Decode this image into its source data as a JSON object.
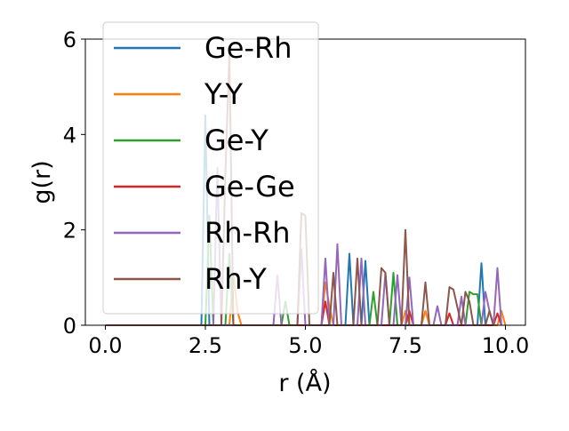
{
  "chart_data": {
    "type": "line",
    "xlabel": "r (Å)",
    "ylabel": "g(r)",
    "xlim": [
      -0.5,
      10.5
    ],
    "ylim": [
      0,
      6
    ],
    "xticks": [
      "0.0",
      "2.5",
      "5.0",
      "7.5",
      "10.0"
    ],
    "yticks": [
      "0",
      "2",
      "4",
      "6"
    ],
    "grid": false,
    "legend_position": "top-left",
    "series": [
      {
        "name": "Ge-Rh",
        "color": "#1f77b4",
        "x": [
          0,
          2.4,
          2.5,
          2.6,
          2.7,
          3.2,
          6.0,
          6.1,
          6.2,
          6.3,
          6.4,
          6.5,
          6.6,
          9.3,
          9.4,
          9.5
        ],
        "y": [
          0,
          0,
          4.4,
          0,
          0,
          0,
          0,
          1.5,
          0,
          0,
          0,
          1.35,
          0,
          0,
          1.3,
          0
        ]
      },
      {
        "name": "Y-Y",
        "color": "#ff7f0e",
        "x": [
          0,
          3.1,
          3.2,
          3.3,
          3.4,
          5.4,
          5.5,
          5.6,
          5.7,
          7.4,
          7.5,
          7.6,
          7.9,
          8.0,
          8.1,
          9.8,
          9.9,
          10.0
        ],
        "y": [
          0,
          0,
          1.1,
          0.3,
          0,
          0,
          0.9,
          0.4,
          0,
          0,
          0.3,
          0,
          0,
          0.3,
          0,
          0,
          0.3,
          0
        ]
      },
      {
        "name": "Ge-Y",
        "color": "#2ca02c",
        "x": [
          0,
          2.5,
          2.6,
          2.7,
          3.0,
          3.1,
          3.2,
          4.4,
          4.5,
          4.6,
          6.6,
          6.7,
          6.8,
          7.1,
          7.2,
          7.3,
          9.0,
          9.1,
          9.2,
          9.3,
          9.4
        ],
        "y": [
          0,
          0,
          2.3,
          0,
          0,
          1.5,
          0,
          0,
          0.5,
          0,
          0,
          0.7,
          0,
          0,
          1.1,
          0,
          0,
          0.7,
          0.65,
          0.65,
          0
        ]
      },
      {
        "name": "Ge-Ge",
        "color": "#d62728",
        "x": [
          0,
          5.4,
          5.5,
          5.6,
          7.5,
          7.6,
          7.7,
          8.5,
          8.6,
          8.7,
          9.7,
          9.8,
          9.9
        ],
        "y": [
          0,
          0,
          0.5,
          0,
          0,
          0.3,
          0,
          0,
          0.25,
          0,
          0,
          0.25,
          0
        ]
      },
      {
        "name": "Rh-Rh",
        "color": "#9467bd",
        "x": [
          0,
          2.7,
          2.8,
          2.9,
          3.0,
          4.2,
          4.3,
          4.4,
          4.8,
          4.9,
          5.0,
          5.1,
          5.2,
          5.4,
          5.5,
          5.6,
          5.7,
          5.8,
          5.9,
          6.0,
          6.3,
          6.4,
          6.5,
          6.9,
          7.0,
          7.1,
          7.2,
          7.3,
          7.4,
          7.5,
          7.6,
          7.7,
          8.2,
          8.3,
          8.4,
          8.8,
          8.9,
          9.0,
          9.4,
          9.5,
          9.6,
          9.7,
          9.8,
          9.9
        ],
        "y": [
          0,
          0,
          3.3,
          0,
          0,
          0,
          1.05,
          0,
          0,
          1.6,
          0,
          0,
          0,
          0,
          1.4,
          0,
          0,
          1.7,
          0,
          0,
          0,
          1.4,
          0,
          0,
          1.1,
          0,
          0,
          1.05,
          0,
          0,
          1.0,
          0,
          0,
          0.4,
          0,
          0,
          0.6,
          0,
          0,
          0.7,
          0.3,
          0,
          1.2,
          0
        ]
      },
      {
        "name": "Rh-Y",
        "color": "#8c564b",
        "x": [
          0,
          2.9,
          3.0,
          3.1,
          3.2,
          4.8,
          4.9,
          5.0,
          5.1,
          5.6,
          5.7,
          5.8,
          6.2,
          6.3,
          6.4,
          6.8,
          6.9,
          7.0,
          7.1,
          7.4,
          7.5,
          7.6,
          7.9,
          8.0,
          8.1,
          8.5,
          8.6,
          8.7,
          8.9,
          9.0,
          9.1,
          9.2,
          9.5,
          9.6,
          9.7
        ],
        "y": [
          0,
          0,
          3.2,
          5.7,
          0,
          0,
          2.35,
          2.3,
          0,
          0,
          1.1,
          0,
          0,
          1.4,
          0,
          0,
          1.2,
          1.1,
          0,
          0,
          2.0,
          0,
          0,
          0.9,
          0,
          0,
          0.8,
          0.75,
          0,
          0.7,
          0.5,
          0,
          0,
          0.3,
          0
        ]
      }
    ]
  }
}
